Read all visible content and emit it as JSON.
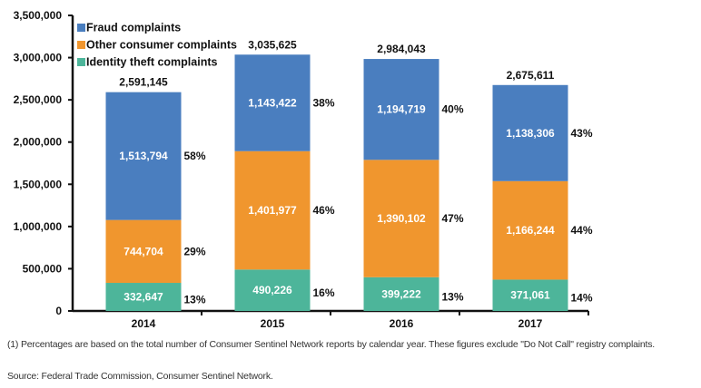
{
  "chart_data": {
    "type": "bar",
    "stacked": true,
    "categories": [
      "2014",
      "2015",
      "2016",
      "2017"
    ],
    "series": [
      {
        "name": "Identity theft complaints",
        "color": "#4db59a",
        "values": [
          332647,
          490226,
          399222,
          371061
        ],
        "labels": [
          "332,647",
          "490,226",
          "399,222",
          "371,061"
        ],
        "percent_labels": [
          "13%",
          "16%",
          "13%",
          "14%"
        ]
      },
      {
        "name": "Other consumer complaints",
        "color": "#f0962e",
        "values": [
          744704,
          1401977,
          1390102,
          1166244
        ],
        "labels": [
          "744,704",
          "1,401,977",
          "1,390,102",
          "1,166,244"
        ],
        "percent_labels": [
          "29%",
          "46%",
          "47%",
          "44%"
        ]
      },
      {
        "name": "Fraud complaints",
        "color": "#4a7ebf",
        "values": [
          1513794,
          1143422,
          1194719,
          1138306
        ],
        "labels": [
          "1,513,794",
          "1,143,422",
          "1,194,719",
          "1,138,306"
        ],
        "percent_labels": [
          "58%",
          "38%",
          "40%",
          "43%"
        ]
      }
    ],
    "totals": [
      2591145,
      3035625,
      2984043,
      2675611
    ],
    "total_labels": [
      "2,591,145",
      "3,035,625",
      "2,984,043",
      "2,675,611"
    ],
    "ylim": [
      0,
      3500000
    ],
    "yticks": [
      0,
      500000,
      1000000,
      1500000,
      2000000,
      2500000,
      3000000,
      3500000
    ],
    "ytick_labels": [
      "0",
      "500,000",
      "1,000,000",
      "1,500,000",
      "2,000,000",
      "2,500,000",
      "3,000,000",
      "3,500,000"
    ],
    "legend": {
      "placement": "top-left",
      "entries": [
        "Fraud complaints",
        "Other consumer complaints",
        "Identity theft complaints"
      ]
    },
    "grid": false,
    "title": "",
    "xlabel": "",
    "ylabel": ""
  },
  "notes": {
    "footnote": "(1) Percentages are based on the total number of Consumer Sentinel Network reports by calendar year. These figures exclude \"Do Not Call\" registry complaints.",
    "source": "Source: Federal Trade Commission, Consumer Sentinel Network."
  }
}
